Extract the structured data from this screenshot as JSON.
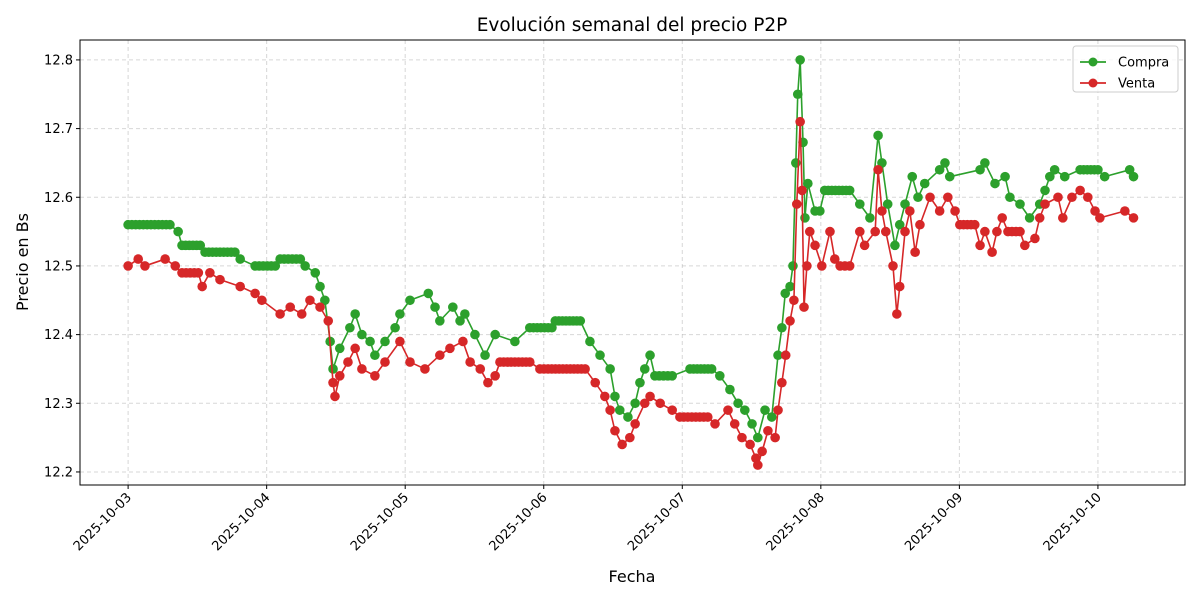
{
  "chart_data": {
    "type": "line",
    "title": "Evolución semanal del precio P2P",
    "xlabel": "Fecha",
    "ylabel": "Precio en Bs",
    "xlim": [
      "2025-10-02 15:40",
      "2025-10-10 15:05"
    ],
    "ylim": [
      12.181,
      12.829
    ],
    "grid": true,
    "legend_position": "top-right",
    "x_ticks": [
      "2025-10-03",
      "2025-10-04",
      "2025-10-05",
      "2025-10-06",
      "2025-10-07",
      "2025-10-08",
      "2025-10-09",
      "2025-10-10"
    ],
    "y_ticks": [
      "12.2",
      "12.3",
      "12.4",
      "12.5",
      "12.6",
      "12.7",
      "12.8"
    ],
    "series": [
      {
        "name": "Compra",
        "color": "#2ca02c",
        "marker": "circle",
        "points": [
          [
            "2025-10-03 00:00",
            12.56
          ],
          [
            "2025-10-03 07:15",
            12.56
          ],
          [
            "2025-10-03 08:40",
            12.55
          ],
          [
            "2025-10-03 09:20",
            12.53
          ],
          [
            "2025-10-03 12:30",
            12.53
          ],
          [
            "2025-10-03 13:20",
            12.52
          ],
          [
            "2025-10-03 18:30",
            12.52
          ],
          [
            "2025-10-03 19:25",
            12.51
          ],
          [
            "2025-10-03 22:00",
            12.5
          ],
          [
            "2025-10-04 01:30",
            12.5
          ],
          [
            "2025-10-04 02:20",
            12.51
          ],
          [
            "2025-10-04 05:50",
            12.51
          ],
          [
            "2025-10-04 06:40",
            12.5
          ],
          [
            "2025-10-04 08:25",
            12.49
          ],
          [
            "2025-10-04 09:15",
            12.47
          ],
          [
            "2025-10-04 10:05",
            12.45
          ],
          [
            "2025-10-04 11:00",
            12.39
          ],
          [
            "2025-10-04 11:30",
            12.35
          ],
          [
            "2025-10-04 12:40",
            12.38
          ],
          [
            "2025-10-04 14:25",
            12.41
          ],
          [
            "2025-10-04 15:20",
            12.43
          ],
          [
            "2025-10-04 16:30",
            12.4
          ],
          [
            "2025-10-04 17:55",
            12.39
          ],
          [
            "2025-10-04 18:45",
            12.37
          ],
          [
            "2025-10-04 20:30",
            12.39
          ],
          [
            "2025-10-04 22:15",
            12.41
          ],
          [
            "2025-10-04 23:05",
            12.43
          ],
          [
            "2025-10-05 00:50",
            12.45
          ],
          [
            "2025-10-05 04:00",
            12.46
          ],
          [
            "2025-10-05 05:10",
            12.44
          ],
          [
            "2025-10-05 06:00",
            12.42
          ],
          [
            "2025-10-05 08:15",
            12.44
          ],
          [
            "2025-10-05 09:30",
            12.42
          ],
          [
            "2025-10-05 10:20",
            12.43
          ],
          [
            "2025-10-05 12:05",
            12.4
          ],
          [
            "2025-10-05 13:50",
            12.37
          ],
          [
            "2025-10-05 15:35",
            12.4
          ],
          [
            "2025-10-05 19:00",
            12.39
          ],
          [
            "2025-10-05 21:35",
            12.41
          ],
          [
            "2025-10-06 01:25",
            12.41
          ],
          [
            "2025-10-06 02:00",
            12.42
          ],
          [
            "2025-10-06 06:20",
            12.42
          ],
          [
            "2025-10-06 08:00",
            12.39
          ],
          [
            "2025-10-06 09:45",
            12.37
          ],
          [
            "2025-10-06 11:30",
            12.35
          ],
          [
            "2025-10-06 12:20",
            12.31
          ],
          [
            "2025-10-06 13:10",
            12.29
          ],
          [
            "2025-10-06 14:35",
            12.28
          ],
          [
            "2025-10-06 15:50",
            12.3
          ],
          [
            "2025-10-06 16:40",
            12.33
          ],
          [
            "2025-10-06 17:30",
            12.35
          ],
          [
            "2025-10-06 18:25",
            12.37
          ],
          [
            "2025-10-06 19:15",
            12.34
          ],
          [
            "2025-10-06 22:15",
            12.34
          ],
          [
            "2025-10-07 01:20",
            12.35
          ],
          [
            "2025-10-07 05:05",
            12.35
          ],
          [
            "2025-10-07 06:30",
            12.34
          ],
          [
            "2025-10-07 08:15",
            12.32
          ],
          [
            "2025-10-07 09:40",
            12.3
          ],
          [
            "2025-10-07 10:50",
            12.29
          ],
          [
            "2025-10-07 12:05",
            12.27
          ],
          [
            "2025-10-07 13:05",
            12.25
          ],
          [
            "2025-10-07 14:20",
            12.29
          ],
          [
            "2025-10-07 15:30",
            12.28
          ],
          [
            "2025-10-07 16:35",
            12.37
          ],
          [
            "2025-10-07 17:15",
            12.41
          ],
          [
            "2025-10-07 17:50",
            12.46
          ],
          [
            "2025-10-07 18:40",
            12.47
          ],
          [
            "2025-10-07 19:10",
            12.5
          ],
          [
            "2025-10-07 19:40",
            12.65
          ],
          [
            "2025-10-07 20:00",
            12.75
          ],
          [
            "2025-10-07 20:25",
            12.8
          ],
          [
            "2025-10-07 20:55",
            12.68
          ],
          [
            "2025-10-07 21:15",
            12.57
          ],
          [
            "2025-10-07 21:45",
            12.62
          ],
          [
            "2025-10-07 23:00",
            12.58
          ],
          [
            "2025-10-07 23:50",
            12.58
          ],
          [
            "2025-10-08 00:40",
            12.61
          ],
          [
            "2025-10-08 05:00",
            12.61
          ],
          [
            "2025-10-08 06:45",
            12.59
          ],
          [
            "2025-10-08 08:30",
            12.57
          ],
          [
            "2025-10-08 09:55",
            12.69
          ],
          [
            "2025-10-08 10:35",
            12.65
          ],
          [
            "2025-10-08 11:35",
            12.59
          ],
          [
            "2025-10-08 12:50",
            12.53
          ],
          [
            "2025-10-08 13:40",
            12.56
          ],
          [
            "2025-10-08 14:35",
            12.59
          ],
          [
            "2025-10-08 15:50",
            12.63
          ],
          [
            "2025-10-08 16:50",
            12.6
          ],
          [
            "2025-10-08 18:00",
            12.62
          ],
          [
            "2025-10-08 20:35",
            12.64
          ],
          [
            "2025-10-08 21:30",
            12.65
          ],
          [
            "2025-10-08 22:20",
            12.63
          ],
          [
            "2025-10-09 03:35",
            12.64
          ],
          [
            "2025-10-09 04:25",
            12.65
          ],
          [
            "2025-10-09 06:10",
            12.62
          ],
          [
            "2025-10-09 07:55",
            12.63
          ],
          [
            "2025-10-09 08:45",
            12.6
          ],
          [
            "2025-10-09 10:30",
            12.59
          ],
          [
            "2025-10-09 12:10",
            12.57
          ],
          [
            "2025-10-09 13:55",
            12.59
          ],
          [
            "2025-10-09 14:50",
            12.61
          ],
          [
            "2025-10-09 15:40",
            12.63
          ],
          [
            "2025-10-09 16:30",
            12.64
          ],
          [
            "2025-10-09 18:15",
            12.63
          ],
          [
            "2025-10-09 20:55",
            12.64
          ],
          [
            "2025-10-10 00:00",
            12.64
          ],
          [
            "2025-10-10 01:10",
            12.63
          ],
          [
            "2025-10-10 05:30",
            12.64
          ],
          [
            "2025-10-10 06:10",
            12.63
          ]
        ]
      },
      {
        "name": "Venta",
        "color": "#d62728",
        "marker": "circle",
        "points": [
          [
            "2025-10-03 00:00",
            12.5
          ],
          [
            "2025-10-03 01:45",
            12.51
          ],
          [
            "2025-10-03 02:55",
            12.5
          ],
          [
            "2025-10-03 06:25",
            12.51
          ],
          [
            "2025-10-03 08:10",
            12.5
          ],
          [
            "2025-10-03 09:20",
            12.49
          ],
          [
            "2025-10-03 12:10",
            12.49
          ],
          [
            "2025-10-03 12:50",
            12.47
          ],
          [
            "2025-10-03 14:10",
            12.49
          ],
          [
            "2025-10-03 15:55",
            12.48
          ],
          [
            "2025-10-03 19:25",
            12.47
          ],
          [
            "2025-10-03 22:00",
            12.46
          ],
          [
            "2025-10-03 23:10",
            12.45
          ],
          [
            "2025-10-04 02:20",
            12.43
          ],
          [
            "2025-10-04 04:05",
            12.44
          ],
          [
            "2025-10-04 06:05",
            12.43
          ],
          [
            "2025-10-04 07:30",
            12.45
          ],
          [
            "2025-10-04 09:15",
            12.44
          ],
          [
            "2025-10-04 10:40",
            12.42
          ],
          [
            "2025-10-04 11:30",
            12.33
          ],
          [
            "2025-10-04 11:50",
            12.31
          ],
          [
            "2025-10-04 12:40",
            12.34
          ],
          [
            "2025-10-04 14:05",
            12.36
          ],
          [
            "2025-10-04 15:20",
            12.38
          ],
          [
            "2025-10-04 16:30",
            12.35
          ],
          [
            "2025-10-04 18:45",
            12.34
          ],
          [
            "2025-10-04 20:30",
            12.36
          ],
          [
            "2025-10-04 23:05",
            12.39
          ],
          [
            "2025-10-05 00:50",
            12.36
          ],
          [
            "2025-10-05 03:25",
            12.35
          ],
          [
            "2025-10-05 06:00",
            12.37
          ],
          [
            "2025-10-05 07:45",
            12.38
          ],
          [
            "2025-10-05 10:00",
            12.39
          ],
          [
            "2025-10-05 11:15",
            12.36
          ],
          [
            "2025-10-05 13:00",
            12.35
          ],
          [
            "2025-10-05 14:20",
            12.33
          ],
          [
            "2025-10-05 15:35",
            12.34
          ],
          [
            "2025-10-05 16:25",
            12.36
          ],
          [
            "2025-10-05 21:35",
            12.36
          ],
          [
            "2025-10-05 23:20",
            12.35
          ],
          [
            "2025-10-06 00:45",
            12.35
          ],
          [
            "2025-10-06 07:10",
            12.35
          ],
          [
            "2025-10-06 08:55",
            12.33
          ],
          [
            "2025-10-06 10:35",
            12.31
          ],
          [
            "2025-10-06 11:30",
            12.29
          ],
          [
            "2025-10-06 12:20",
            12.26
          ],
          [
            "2025-10-06 13:35",
            12.24
          ],
          [
            "2025-10-06 14:55",
            12.25
          ],
          [
            "2025-10-06 15:50",
            12.27
          ],
          [
            "2025-10-06 17:30",
            12.3
          ],
          [
            "2025-10-06 18:25",
            12.31
          ],
          [
            "2025-10-06 20:10",
            12.3
          ],
          [
            "2025-10-06 22:15",
            12.29
          ],
          [
            "2025-10-06 23:35",
            12.28
          ],
          [
            "2025-10-07 04:25",
            12.28
          ],
          [
            "2025-10-07 05:40",
            12.27
          ],
          [
            "2025-10-07 07:55",
            12.29
          ],
          [
            "2025-10-07 09:05",
            12.27
          ],
          [
            "2025-10-07 10:20",
            12.25
          ],
          [
            "2025-10-07 11:45",
            12.24
          ],
          [
            "2025-10-07 12:45",
            12.22
          ],
          [
            "2025-10-07 13:05",
            12.21
          ],
          [
            "2025-10-07 13:50",
            12.23
          ],
          [
            "2025-10-07 14:50",
            12.26
          ],
          [
            "2025-10-07 16:05",
            12.25
          ],
          [
            "2025-10-07 16:35",
            12.29
          ],
          [
            "2025-10-07 17:15",
            12.33
          ],
          [
            "2025-10-07 17:55",
            12.37
          ],
          [
            "2025-10-07 18:40",
            12.42
          ],
          [
            "2025-10-07 19:20",
            12.45
          ],
          [
            "2025-10-07 19:50",
            12.59
          ],
          [
            "2025-10-07 20:25",
            12.71
          ],
          [
            "2025-10-07 20:45",
            12.61
          ],
          [
            "2025-10-07 21:05",
            12.44
          ],
          [
            "2025-10-07 21:35",
            12.5
          ],
          [
            "2025-10-07 22:05",
            12.55
          ],
          [
            "2025-10-07 23:00",
            12.53
          ],
          [
            "2025-10-08 00:10",
            12.5
          ],
          [
            "2025-10-08 01:35",
            12.55
          ],
          [
            "2025-10-08 02:25",
            12.51
          ],
          [
            "2025-10-08 03:20",
            12.5
          ],
          [
            "2025-10-08 05:00",
            12.5
          ],
          [
            "2025-10-08 06:45",
            12.55
          ],
          [
            "2025-10-08 07:35",
            12.53
          ],
          [
            "2025-10-08 09:25",
            12.55
          ],
          [
            "2025-10-08 09:55",
            12.64
          ],
          [
            "2025-10-08 10:35",
            12.58
          ],
          [
            "2025-10-08 11:15",
            12.55
          ],
          [
            "2025-10-08 12:30",
            12.5
          ],
          [
            "2025-10-08 13:10",
            12.43
          ],
          [
            "2025-10-08 13:40",
            12.47
          ],
          [
            "2025-10-08 14:35",
            12.55
          ],
          [
            "2025-10-08 15:25",
            12.58
          ],
          [
            "2025-10-08 16:20",
            12.52
          ],
          [
            "2025-10-08 17:10",
            12.56
          ],
          [
            "2025-10-08 18:55",
            12.6
          ],
          [
            "2025-10-08 20:35",
            12.58
          ],
          [
            "2025-10-08 22:00",
            12.6
          ],
          [
            "2025-10-08 23:15",
            12.58
          ],
          [
            "2025-10-09 00:05",
            12.56
          ],
          [
            "2025-10-09 02:40",
            12.56
          ],
          [
            "2025-10-09 03:35",
            12.53
          ],
          [
            "2025-10-09 04:25",
            12.55
          ],
          [
            "2025-10-09 05:40",
            12.52
          ],
          [
            "2025-10-09 06:30",
            12.55
          ],
          [
            "2025-10-09 07:25",
            12.57
          ],
          [
            "2025-10-09 08:25",
            12.55
          ],
          [
            "2025-10-09 10:30",
            12.55
          ],
          [
            "2025-10-09 11:20",
            12.53
          ],
          [
            "2025-10-09 13:05",
            12.54
          ],
          [
            "2025-10-09 13:55",
            12.57
          ],
          [
            "2025-10-09 14:50",
            12.59
          ],
          [
            "2025-10-09 17:05",
            12.6
          ],
          [
            "2025-10-09 17:55",
            12.57
          ],
          [
            "2025-10-09 19:30",
            12.6
          ],
          [
            "2025-10-09 20:55",
            12.61
          ],
          [
            "2025-10-09 22:15",
            12.6
          ],
          [
            "2025-10-09 23:30",
            12.58
          ],
          [
            "2025-10-10 00:20",
            12.57
          ],
          [
            "2025-10-10 04:40",
            12.58
          ],
          [
            "2025-10-10 06:10",
            12.57
          ]
        ]
      }
    ]
  }
}
